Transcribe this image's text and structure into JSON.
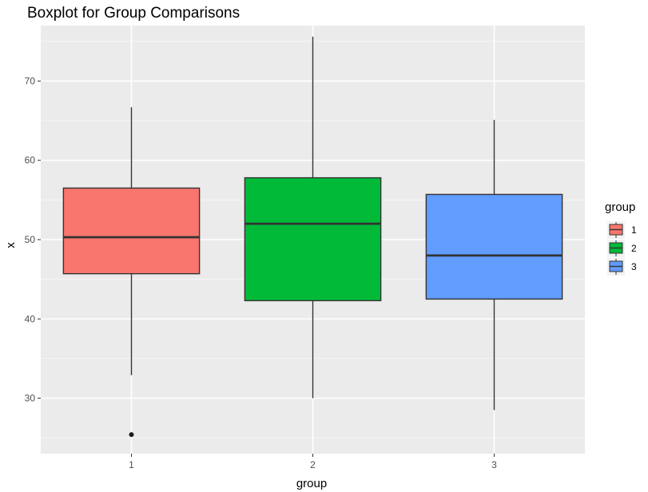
{
  "chart_data": {
    "type": "boxplot",
    "title": "Boxplot for Group Comparisons",
    "xlabel": "group",
    "ylabel": "x",
    "ylim": [
      23,
      77
    ],
    "yticks": [
      30,
      40,
      50,
      60,
      70
    ],
    "categories": [
      "1",
      "2",
      "3"
    ],
    "grid": true,
    "legend": {
      "title": "group",
      "position": "right",
      "entries": [
        "1",
        "2",
        "3"
      ]
    },
    "colors": {
      "1": "#f8766d",
      "2": "#00ba38",
      "3": "#619cff"
    },
    "boxes": [
      {
        "group": "1",
        "whisker_low": 32.9,
        "q1": 45.7,
        "median": 50.3,
        "q3": 56.5,
        "whisker_high": 66.7,
        "outliers": [
          25.4
        ]
      },
      {
        "group": "2",
        "whisker_low": 30.0,
        "q1": 42.3,
        "median": 52.0,
        "q3": 57.8,
        "whisker_high": 75.6,
        "outliers": []
      },
      {
        "group": "3",
        "whisker_low": 28.5,
        "q1": 42.5,
        "median": 48.0,
        "q3": 55.7,
        "whisker_high": 65.1,
        "outliers": []
      }
    ]
  }
}
